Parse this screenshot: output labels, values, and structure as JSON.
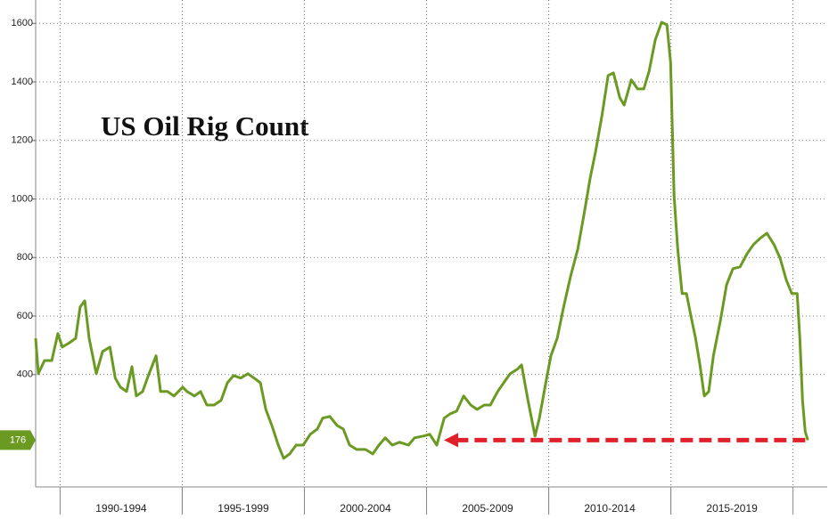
{
  "chart_data": {
    "type": "line",
    "title": "US Oil Rig Count",
    "xlim": [
      1989,
      2021.4
    ],
    "ylim": [
      16,
      1680
    ],
    "yticks": [
      400,
      600,
      800,
      1000,
      1200,
      1400,
      1600
    ],
    "grid": true,
    "x_bands": [
      {
        "label": "1990-1994",
        "from": 1990,
        "to": 1995
      },
      {
        "label": "1995-1999",
        "from": 1995,
        "to": 2000
      },
      {
        "label": "2000-2004",
        "from": 2000,
        "to": 2005
      },
      {
        "label": "2005-2009",
        "from": 2005,
        "to": 2010
      },
      {
        "label": "2010-2014",
        "from": 2010,
        "to": 2015
      },
      {
        "label": "2015-2019",
        "from": 2015,
        "to": 2020
      }
    ],
    "series": [
      {
        "color": "#6b9a22",
        "x": [
          1989.0,
          1989.11,
          1989.36,
          1989.66,
          1989.91,
          1990.09,
          1990.39,
          1990.64,
          1990.82,
          1991.01,
          1991.19,
          1991.48,
          1991.74,
          1992.04,
          1992.26,
          1992.47,
          1992.72,
          1992.94,
          1993.12,
          1993.38,
          1993.64,
          1993.93,
          1994.11,
          1994.4,
          1994.66,
          1995.02,
          1995.2,
          1995.5,
          1995.75,
          1996.01,
          1996.3,
          1996.59,
          1996.85,
          1997.1,
          1997.39,
          1997.69,
          1997.94,
          1998.2,
          1998.42,
          1998.67,
          1998.93,
          1999.15,
          1999.4,
          1999.66,
          1999.95,
          2000.24,
          2000.53,
          2000.75,
          2001.04,
          2001.34,
          2001.59,
          2001.85,
          2002.14,
          2002.5,
          2002.8,
          2003.05,
          2003.31,
          2003.6,
          2003.89,
          2004.26,
          2004.51,
          2004.88,
          2005.13,
          2005.42,
          2005.72,
          2005.97,
          2006.23,
          2006.52,
          2006.81,
          2007.07,
          2007.36,
          2007.61,
          2007.91,
          2008.16,
          2008.42,
          2008.71,
          2008.89,
          2009.15,
          2009.44,
          2009.62,
          2009.88,
          2010.09,
          2010.35,
          2010.61,
          2010.9,
          2011.19,
          2011.45,
          2011.7,
          2011.92,
          2012.18,
          2012.43,
          2012.65,
          2012.91,
          2013.09,
          2013.38,
          2013.64,
          2013.89,
          2014.11,
          2014.36,
          2014.62,
          2014.84,
          2014.99,
          2015.13,
          2015.28,
          2015.46,
          2015.64,
          2015.82,
          2016.01,
          2016.19,
          2016.37,
          2016.55,
          2016.74,
          2017.03,
          2017.28,
          2017.54,
          2017.83,
          2018.12,
          2018.38,
          2018.64,
          2018.93,
          2019.22,
          2019.47,
          2019.73,
          2019.95,
          2020.17,
          2020.28,
          2020.39,
          2020.5,
          2020.61
        ],
        "values": [
          524,
          403,
          448,
          448,
          540,
          494,
          509,
          524,
          631,
          652,
          524,
          403,
          479,
          494,
          388,
          357,
          342,
          427,
          327,
          342,
          403,
          464,
          342,
          342,
          327,
          357,
          342,
          327,
          342,
          296,
          296,
          312,
          372,
          397,
          388,
          403,
          388,
          372,
          281,
          226,
          159,
          114,
          129,
          159,
          159,
          196,
          214,
          251,
          257,
          226,
          214,
          159,
          144,
          144,
          129,
          159,
          184,
          159,
          169,
          159,
          184,
          190,
          196,
          159,
          251,
          266,
          275,
          327,
          296,
          281,
          296,
          296,
          342,
          372,
          403,
          418,
          433,
          312,
          190,
          251,
          372,
          464,
          524,
          631,
          737,
          829,
          950,
          1072,
          1163,
          1285,
          1422,
          1431,
          1346,
          1321,
          1407,
          1376,
          1376,
          1437,
          1544,
          1604,
          1595,
          1467,
          1011,
          829,
          677,
          677,
          600,
          524,
          433,
          327,
          342,
          464,
          585,
          707,
          762,
          768,
          813,
          844,
          865,
          883,
          844,
          798,
          722,
          677,
          677,
          524,
          312,
          205,
          176
        ]
      }
    ]
  }
}
